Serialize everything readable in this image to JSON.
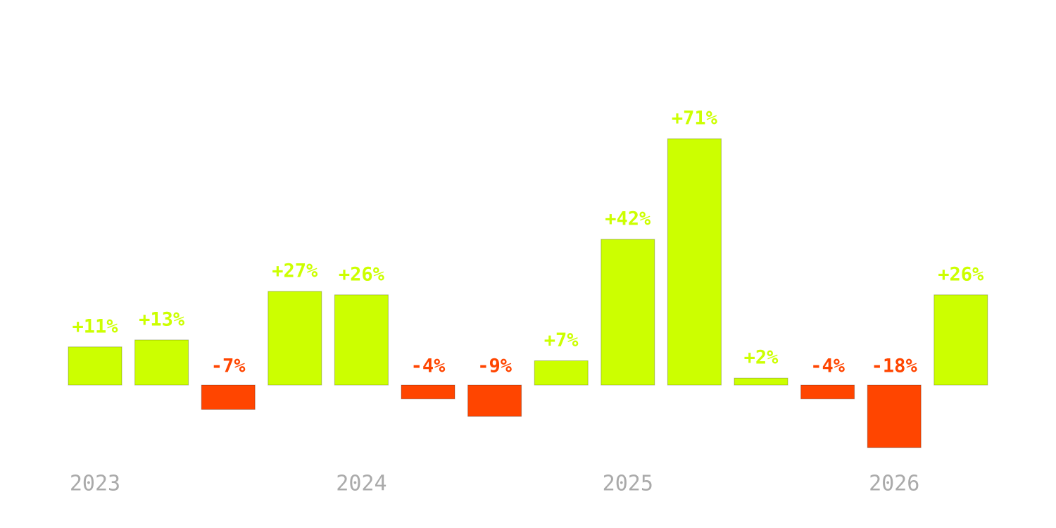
{
  "chart_data": {
    "type": "bar",
    "categories": [
      "2023",
      null,
      null,
      null,
      "2024",
      null,
      null,
      null,
      "2025",
      null,
      null,
      null,
      "2026",
      null
    ],
    "values": [
      11,
      13,
      -7,
      27,
      26,
      -4,
      -9,
      7,
      42,
      71,
      2,
      -4,
      -18,
      26
    ],
    "value_labels": [
      "+11%",
      "+13%",
      "-7%",
      "+27%",
      "+26%",
      "-4%",
      "-9%",
      "+7%",
      "+42%",
      "+71%",
      "+2%",
      "-4%",
      "-18%",
      "+26%"
    ],
    "color": "#ccff00",
    "negative_color": "#ff4500"
  }
}
